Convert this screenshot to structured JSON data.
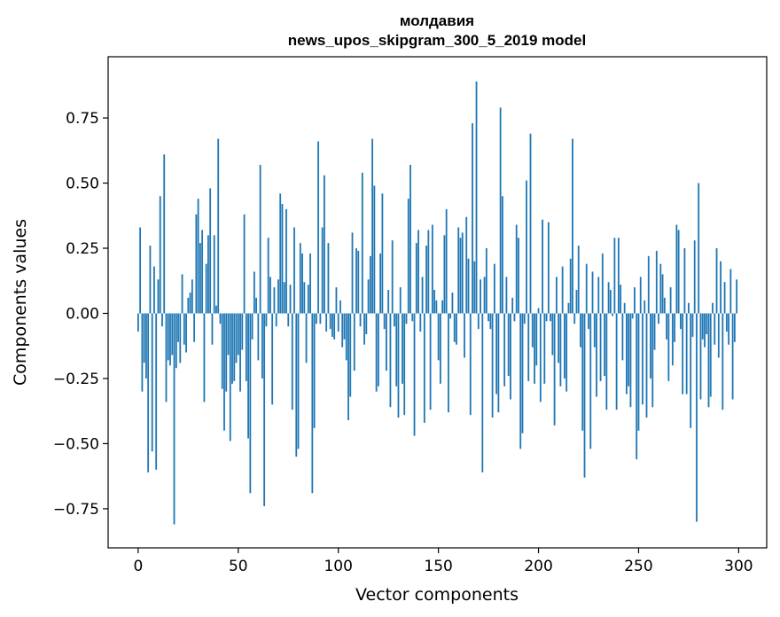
{
  "chart_data": {
    "type": "bar",
    "title": "молдавия",
    "subtitle": "news_upos_skipgram_300_5_2019 model",
    "xlabel": "Vector components",
    "ylabel": "Components values",
    "xlim": [
      -15,
      314
    ],
    "ylim": [
      -0.9,
      0.985
    ],
    "xticks": [
      0,
      50,
      100,
      150,
      200,
      250,
      300
    ],
    "yticks": [
      -0.75,
      -0.5,
      -0.25,
      0.0,
      0.25,
      0.5,
      0.75
    ],
    "ytick_labels": [
      "−0.75",
      "−0.50",
      "−0.25",
      "0.00",
      "0.25",
      "0.50",
      "0.75"
    ],
    "grid": false,
    "bar_color": "#1f77b4",
    "values": [
      -0.07,
      0.33,
      -0.3,
      -0.19,
      -0.25,
      -0.61,
      0.26,
      -0.53,
      0.18,
      -0.6,
      0.13,
      0.45,
      -0.05,
      0.61,
      -0.34,
      -0.18,
      -0.2,
      -0.16,
      -0.81,
      -0.21,
      -0.11,
      -0.19,
      0.15,
      -0.12,
      -0.15,
      0.06,
      0.08,
      0.13,
      -0.11,
      0.38,
      0.44,
      0.27,
      0.32,
      -0.34,
      0.19,
      0.3,
      0.48,
      -0.12,
      0.3,
      0.03,
      0.67,
      -0.04,
      -0.29,
      -0.45,
      -0.3,
      -0.16,
      -0.49,
      -0.27,
      -0.26,
      -0.19,
      -0.16,
      -0.3,
      -0.14,
      0.38,
      -0.26,
      -0.48,
      -0.69,
      -0.1,
      0.16,
      0.06,
      -0.18,
      0.57,
      -0.25,
      -0.74,
      -0.05,
      0.29,
      0.14,
      -0.35,
      0.1,
      -0.05,
      0.13,
      0.46,
      0.42,
      0.12,
      0.4,
      -0.05,
      0.11,
      -0.37,
      0.33,
      -0.55,
      -0.52,
      0.27,
      0.23,
      0.12,
      -0.19,
      0.11,
      0.23,
      -0.69,
      -0.44,
      -0.04,
      0.66,
      -0.04,
      0.33,
      0.53,
      -0.07,
      0.27,
      -0.06,
      -0.09,
      -0.1,
      0.1,
      -0.07,
      0.05,
      -0.13,
      -0.1,
      -0.18,
      -0.41,
      -0.32,
      0.31,
      -0.22,
      0.25,
      0.24,
      -0.05,
      0.54,
      -0.12,
      -0.08,
      0.13,
      0.22,
      0.67,
      0.49,
      -0.3,
      -0.28,
      0.23,
      0.46,
      -0.06,
      -0.22,
      0.09,
      -0.36,
      0.28,
      -0.05,
      -0.28,
      -0.4,
      0.1,
      -0.27,
      -0.39,
      -0.04,
      0.44,
      0.57,
      -0.03,
      -0.47,
      0.27,
      0.32,
      -0.07,
      0.14,
      -0.42,
      0.26,
      0.32,
      -0.37,
      0.34,
      0.09,
      0.05,
      -0.18,
      -0.27,
      0.05,
      0.3,
      0.4,
      -0.38,
      -0.02,
      0.08,
      -0.11,
      -0.12,
      0.33,
      0.29,
      0.31,
      -0.17,
      0.37,
      0.21,
      -0.39,
      0.73,
      0.2,
      0.89,
      -0.06,
      0.13,
      -0.61,
      0.14,
      0.25,
      -0.03,
      -0.06,
      -0.4,
      0.19,
      -0.31,
      -0.38,
      0.79,
      0.45,
      -0.28,
      0.14,
      -0.24,
      -0.33,
      0.06,
      -0.03,
      0.34,
      0.29,
      -0.52,
      -0.46,
      -0.04,
      0.51,
      -0.26,
      0.69,
      -0.13,
      -0.27,
      -0.2,
      0.02,
      -0.34,
      0.36,
      -0.27,
      -0.03,
      0.35,
      -0.03,
      -0.16,
      -0.43,
      0.14,
      -0.19,
      -0.28,
      0.18,
      -0.25,
      -0.3,
      0.04,
      0.21,
      0.67,
      -0.04,
      0.09,
      0.26,
      -0.13,
      -0.45,
      -0.63,
      0.19,
      -0.06,
      -0.52,
      0.16,
      -0.13,
      -0.32,
      0.14,
      -0.26,
      0.23,
      -0.24,
      -0.37,
      0.12,
      0.09,
      -0.01,
      0.29,
      -0.37,
      0.29,
      0.11,
      -0.18,
      0.04,
      -0.31,
      -0.28,
      -0.36,
      -0.02,
      0.1,
      -0.56,
      -0.45,
      0.14,
      -0.35,
      0.05,
      -0.4,
      0.22,
      -0.25,
      -0.36,
      -0.14,
      0.24,
      -0.04,
      0.19,
      0.15,
      0.06,
      -0.1,
      -0.26,
      0.1,
      -0.2,
      -0.11,
      0.34,
      0.32,
      -0.06,
      -0.31,
      0.25,
      -0.31,
      0.04,
      -0.44,
      -0.09,
      0.28,
      -0.8,
      0.5,
      -0.33,
      -0.1,
      -0.13,
      -0.08,
      -0.36,
      -0.32,
      0.04,
      -0.12,
      0.25,
      -0.17,
      0.2,
      -0.37,
      0.12,
      -0.07,
      -0.12,
      0.17,
      -0.33,
      -0.11,
      0.13
    ]
  }
}
